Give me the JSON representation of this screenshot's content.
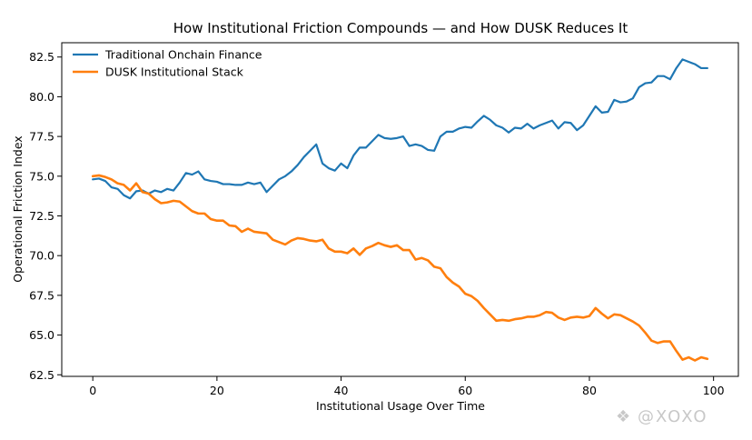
{
  "chart_data": {
    "type": "line",
    "title": "How Institutional Friction Compounds — and How DUSK Reduces It",
    "xlabel": "Institutional Usage Over Time",
    "ylabel": "Operational Friction Index",
    "xlim": [
      -5,
      104
    ],
    "ylim": [
      62.4,
      83.4
    ],
    "xticks": [
      0,
      20,
      40,
      60,
      80,
      100
    ],
    "yticks": [
      62.5,
      65.0,
      67.5,
      70.0,
      72.5,
      75.0,
      77.5,
      80.0,
      82.5
    ],
    "xtick_labels": [
      "0",
      "20",
      "40",
      "60",
      "80",
      "100"
    ],
    "ytick_labels": [
      "62.5",
      "65.0",
      "67.5",
      "70.0",
      "72.5",
      "75.0",
      "77.5",
      "80.0",
      "82.5"
    ],
    "grid": false,
    "legend_position": "top-left",
    "x": [
      0,
      1,
      2,
      3,
      4,
      5,
      6,
      7,
      8,
      9,
      10,
      11,
      12,
      13,
      14,
      15,
      16,
      17,
      18,
      19,
      20,
      21,
      22,
      23,
      24,
      25,
      26,
      27,
      28,
      29,
      30,
      31,
      32,
      33,
      34,
      35,
      36,
      37,
      38,
      39,
      40,
      41,
      42,
      43,
      44,
      45,
      46,
      47,
      48,
      49,
      50,
      51,
      52,
      53,
      54,
      55,
      56,
      57,
      58,
      59,
      60,
      61,
      62,
      63,
      64,
      65,
      66,
      67,
      68,
      69,
      70,
      71,
      72,
      73,
      74,
      75,
      76,
      77,
      78,
      79,
      80,
      81,
      82,
      83,
      84,
      85,
      86,
      87,
      88,
      89,
      90,
      91,
      92,
      93,
      94,
      95,
      96,
      97,
      98,
      99
    ],
    "series": [
      {
        "name": "Traditional Onchain Finance",
        "color": "#1f77b4",
        "values": [
          74.8,
          74.85,
          74.7,
          74.3,
          74.2,
          73.8,
          73.6,
          74.05,
          74.1,
          73.9,
          74.1,
          74.0,
          74.2,
          74.1,
          74.6,
          75.2,
          75.1,
          75.3,
          74.8,
          74.7,
          74.65,
          74.5,
          74.5,
          74.45,
          74.45,
          74.6,
          74.5,
          74.6,
          74.0,
          74.4,
          74.8,
          75.0,
          75.3,
          75.7,
          76.2,
          76.6,
          77.0,
          75.8,
          75.5,
          75.35,
          75.8,
          75.5,
          76.3,
          76.8,
          76.8,
          77.2,
          77.6,
          77.4,
          77.35,
          77.4,
          77.5,
          76.9,
          77.0,
          76.9,
          76.65,
          76.6,
          77.5,
          77.8,
          77.8,
          78.0,
          78.1,
          78.05,
          78.45,
          78.8,
          78.55,
          78.2,
          78.05,
          77.75,
          78.05,
          78.0,
          78.3,
          78.0,
          78.2,
          78.35,
          78.5,
          78.0,
          78.4,
          78.35,
          77.9,
          78.2,
          78.8,
          79.4,
          79.0,
          79.05,
          79.8,
          79.65,
          79.7,
          79.9,
          80.6,
          80.85,
          80.9,
          81.3,
          81.3,
          81.1,
          81.8,
          82.35,
          82.2,
          82.05,
          81.8,
          81.8
        ]
      },
      {
        "name": "DUSK Institutional Stack",
        "color": "#ff7f0e",
        "values": [
          75.0,
          75.05,
          74.95,
          74.8,
          74.55,
          74.45,
          74.1,
          74.55,
          74.0,
          73.9,
          73.55,
          73.3,
          73.35,
          73.45,
          73.4,
          73.1,
          72.8,
          72.65,
          72.65,
          72.3,
          72.2,
          72.2,
          71.9,
          71.85,
          71.5,
          71.7,
          71.5,
          71.45,
          71.4,
          71.0,
          70.85,
          70.7,
          70.95,
          71.1,
          71.05,
          70.95,
          70.9,
          71.0,
          70.45,
          70.25,
          70.25,
          70.15,
          70.45,
          70.05,
          70.45,
          70.6,
          70.8,
          70.65,
          70.55,
          70.65,
          70.35,
          70.35,
          69.75,
          69.85,
          69.7,
          69.3,
          69.2,
          68.65,
          68.3,
          68.05,
          67.6,
          67.45,
          67.15,
          66.7,
          66.3,
          65.9,
          65.95,
          65.9,
          66.0,
          66.05,
          66.15,
          66.15,
          66.25,
          66.45,
          66.4,
          66.1,
          65.95,
          66.1,
          66.15,
          66.1,
          66.2,
          66.7,
          66.35,
          66.05,
          66.3,
          66.25,
          66.05,
          65.85,
          65.6,
          65.15,
          64.65,
          64.5,
          64.6,
          64.6,
          64.0,
          63.45,
          63.6,
          63.4,
          63.6,
          63.5
        ]
      }
    ]
  },
  "watermark": {
    "symbol": "❖",
    "text": "@XOXO"
  }
}
